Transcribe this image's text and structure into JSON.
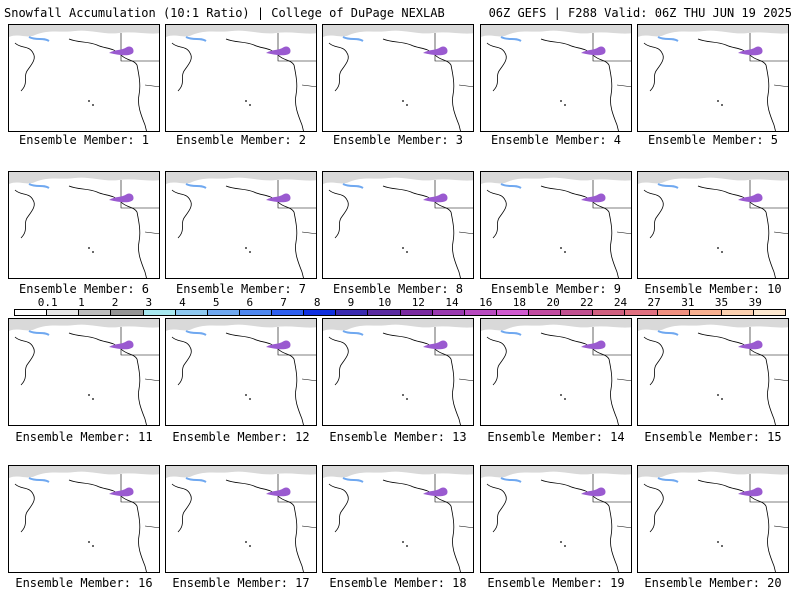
{
  "header": {
    "title": "Snowfall Accumulation (10:1 Ratio) | College of DuPage NEXLAB",
    "run_info": "06Z GEFS | F288 Valid: 06Z THU JUN 19 2025"
  },
  "members": [
    {
      "label": "Ensemble Member: 1"
    },
    {
      "label": "Ensemble Member: 2"
    },
    {
      "label": "Ensemble Member: 3"
    },
    {
      "label": "Ensemble Member: 4"
    },
    {
      "label": "Ensemble Member: 5"
    },
    {
      "label": "Ensemble Member: 6"
    },
    {
      "label": "Ensemble Member: 7"
    },
    {
      "label": "Ensemble Member: 8"
    },
    {
      "label": "Ensemble Member: 9"
    },
    {
      "label": "Ensemble Member: 10"
    },
    {
      "label": "Ensemble Member: 11"
    },
    {
      "label": "Ensemble Member: 12"
    },
    {
      "label": "Ensemble Member: 13"
    },
    {
      "label": "Ensemble Member: 14"
    },
    {
      "label": "Ensemble Member: 15"
    },
    {
      "label": "Ensemble Member: 16"
    },
    {
      "label": "Ensemble Member: 17"
    },
    {
      "label": "Ensemble Member: 18"
    },
    {
      "label": "Ensemble Member: 19"
    },
    {
      "label": "Ensemble Member: 20"
    }
  ],
  "colorbar": {
    "ticks": [
      "0.1",
      "1",
      "2",
      "3",
      "4",
      "5",
      "6",
      "7",
      "8",
      "9",
      "10",
      "12",
      "14",
      "16",
      "18",
      "20",
      "22",
      "24",
      "27",
      "31",
      "35",
      "39"
    ],
    "colors": [
      "#ffffff",
      "#e6e6e6",
      "#bdbdbd",
      "#969696",
      "#a8e8f0",
      "#8ec8f0",
      "#6fa8f0",
      "#4f88f0",
      "#2f60f0",
      "#1030e0",
      "#3a2ab0",
      "#5a2aa0",
      "#7a2aa0",
      "#9a3ab0",
      "#b84ac0",
      "#d05ad0",
      "#c04aa0",
      "#c05090",
      "#d06080",
      "#e07080",
      "#f09080",
      "#f8b090",
      "#fcd0b0",
      "#fde8d0"
    ]
  }
}
